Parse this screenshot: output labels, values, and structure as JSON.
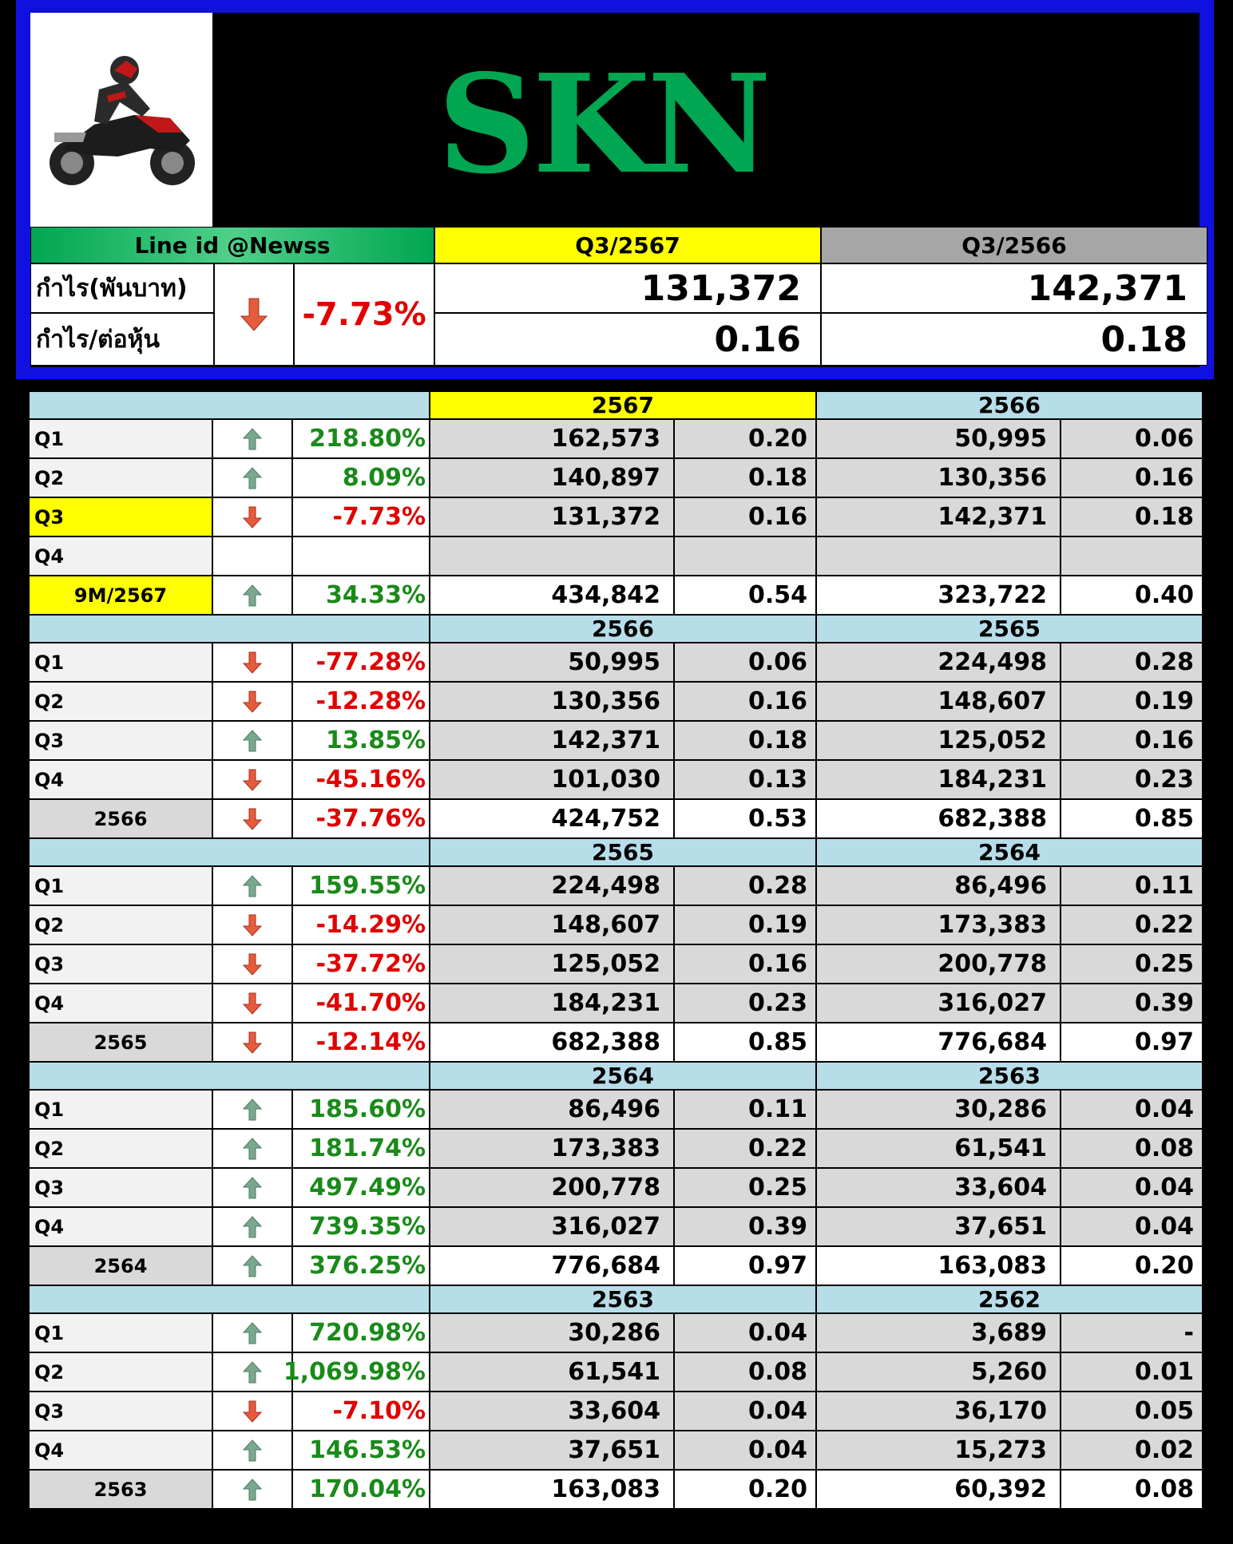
{
  "header": {
    "title": "SKN",
    "line_id": "Line id @Newss",
    "col_current": "Q3/2567",
    "col_previous": "Q3/2566",
    "profit_label": "กำไร(พันบาท)",
    "eps_label": "กำไร/ต่อหุ้น",
    "change_pct": "-7.73%",
    "change_direction": "down",
    "profit_current": "131,372",
    "profit_previous": "142,371",
    "eps_current": "0.16",
    "eps_previous": "0.18"
  },
  "colors": {
    "brand_green": "#00a651",
    "up_green": "#1a8a1a",
    "down_red": "#e00000",
    "highlight_yellow": "#ffff00",
    "section_blue": "#b7dde8"
  },
  "sections": [
    {
      "year_a": "2567",
      "year_b": "2566",
      "year_a_highlight": true,
      "rows": [
        {
          "label": "Q1",
          "dir": "up",
          "pct": "218.80%",
          "a_profit": "162,573",
          "a_eps": "0.20",
          "b_profit": "50,995",
          "b_eps": "0.06"
        },
        {
          "label": "Q2",
          "dir": "up",
          "pct": "8.09%",
          "a_profit": "140,897",
          "a_eps": "0.18",
          "b_profit": "130,356",
          "b_eps": "0.16"
        },
        {
          "label": "Q3",
          "dir": "down",
          "pct": "-7.73%",
          "a_profit": "131,372",
          "a_eps": "0.16",
          "b_profit": "142,371",
          "b_eps": "0.18",
          "highlight": true
        },
        {
          "label": "Q4",
          "dir": "",
          "pct": "",
          "a_profit": "",
          "a_eps": "",
          "b_profit": "",
          "b_eps": ""
        },
        {
          "label": "9M/2567",
          "dir": "up",
          "pct": "34.33%",
          "a_profit": "434,842",
          "a_eps": "0.54",
          "b_profit": "323,722",
          "b_eps": "0.40",
          "total": true,
          "highlight": true
        }
      ]
    },
    {
      "year_a": "2566",
      "year_b": "2565",
      "rows": [
        {
          "label": "Q1",
          "dir": "down",
          "pct": "-77.28%",
          "a_profit": "50,995",
          "a_eps": "0.06",
          "b_profit": "224,498",
          "b_eps": "0.28"
        },
        {
          "label": "Q2",
          "dir": "down",
          "pct": "-12.28%",
          "a_profit": "130,356",
          "a_eps": "0.16",
          "b_profit": "148,607",
          "b_eps": "0.19"
        },
        {
          "label": "Q3",
          "dir": "up",
          "pct": "13.85%",
          "a_profit": "142,371",
          "a_eps": "0.18",
          "b_profit": "125,052",
          "b_eps": "0.16"
        },
        {
          "label": "Q4",
          "dir": "down",
          "pct": "-45.16%",
          "a_profit": "101,030",
          "a_eps": "0.13",
          "b_profit": "184,231",
          "b_eps": "0.23"
        },
        {
          "label": "2566",
          "dir": "down",
          "pct": "-37.76%",
          "a_profit": "424,752",
          "a_eps": "0.53",
          "b_profit": "682,388",
          "b_eps": "0.85",
          "total": true
        }
      ]
    },
    {
      "year_a": "2565",
      "year_b": "2564",
      "rows": [
        {
          "label": "Q1",
          "dir": "up",
          "pct": "159.55%",
          "a_profit": "224,498",
          "a_eps": "0.28",
          "b_profit": "86,496",
          "b_eps": "0.11"
        },
        {
          "label": "Q2",
          "dir": "down",
          "pct": "-14.29%",
          "a_profit": "148,607",
          "a_eps": "0.19",
          "b_profit": "173,383",
          "b_eps": "0.22"
        },
        {
          "label": "Q3",
          "dir": "down",
          "pct": "-37.72%",
          "a_profit": "125,052",
          "a_eps": "0.16",
          "b_profit": "200,778",
          "b_eps": "0.25"
        },
        {
          "label": "Q4",
          "dir": "down",
          "pct": "-41.70%",
          "a_profit": "184,231",
          "a_eps": "0.23",
          "b_profit": "316,027",
          "b_eps": "0.39"
        },
        {
          "label": "2565",
          "dir": "down",
          "pct": "-12.14%",
          "a_profit": "682,388",
          "a_eps": "0.85",
          "b_profit": "776,684",
          "b_eps": "0.97",
          "total": true
        }
      ]
    },
    {
      "year_a": "2564",
      "year_b": "2563",
      "rows": [
        {
          "label": "Q1",
          "dir": "up",
          "pct": "185.60%",
          "a_profit": "86,496",
          "a_eps": "0.11",
          "b_profit": "30,286",
          "b_eps": "0.04"
        },
        {
          "label": "Q2",
          "dir": "up",
          "pct": "181.74%",
          "a_profit": "173,383",
          "a_eps": "0.22",
          "b_profit": "61,541",
          "b_eps": "0.08"
        },
        {
          "label": "Q3",
          "dir": "up",
          "pct": "497.49%",
          "a_profit": "200,778",
          "a_eps": "0.25",
          "b_profit": "33,604",
          "b_eps": "0.04"
        },
        {
          "label": "Q4",
          "dir": "up",
          "pct": "739.35%",
          "a_profit": "316,027",
          "a_eps": "0.39",
          "b_profit": "37,651",
          "b_eps": "0.04"
        },
        {
          "label": "2564",
          "dir": "up",
          "pct": "376.25%",
          "a_profit": "776,684",
          "a_eps": "0.97",
          "b_profit": "163,083",
          "b_eps": "0.20",
          "total": true
        }
      ]
    },
    {
      "year_a": "2563",
      "year_b": "2562",
      "rows": [
        {
          "label": "Q1",
          "dir": "up",
          "pct": "720.98%",
          "a_profit": "30,286",
          "a_eps": "0.04",
          "b_profit": "3,689",
          "b_eps": "-"
        },
        {
          "label": "Q2",
          "dir": "up",
          "pct": "1,069.98%",
          "a_profit": "61,541",
          "a_eps": "0.08",
          "b_profit": "5,260",
          "b_eps": "0.01"
        },
        {
          "label": "Q3",
          "dir": "down",
          "pct": "-7.10%",
          "a_profit": "33,604",
          "a_eps": "0.04",
          "b_profit": "36,170",
          "b_eps": "0.05"
        },
        {
          "label": "Q4",
          "dir": "up",
          "pct": "146.53%",
          "a_profit": "37,651",
          "a_eps": "0.04",
          "b_profit": "15,273",
          "b_eps": "0.02"
        },
        {
          "label": "2563",
          "dir": "up",
          "pct": "170.04%",
          "a_profit": "163,083",
          "a_eps": "0.20",
          "b_profit": "60,392",
          "b_eps": "0.08",
          "total": true
        }
      ]
    }
  ]
}
